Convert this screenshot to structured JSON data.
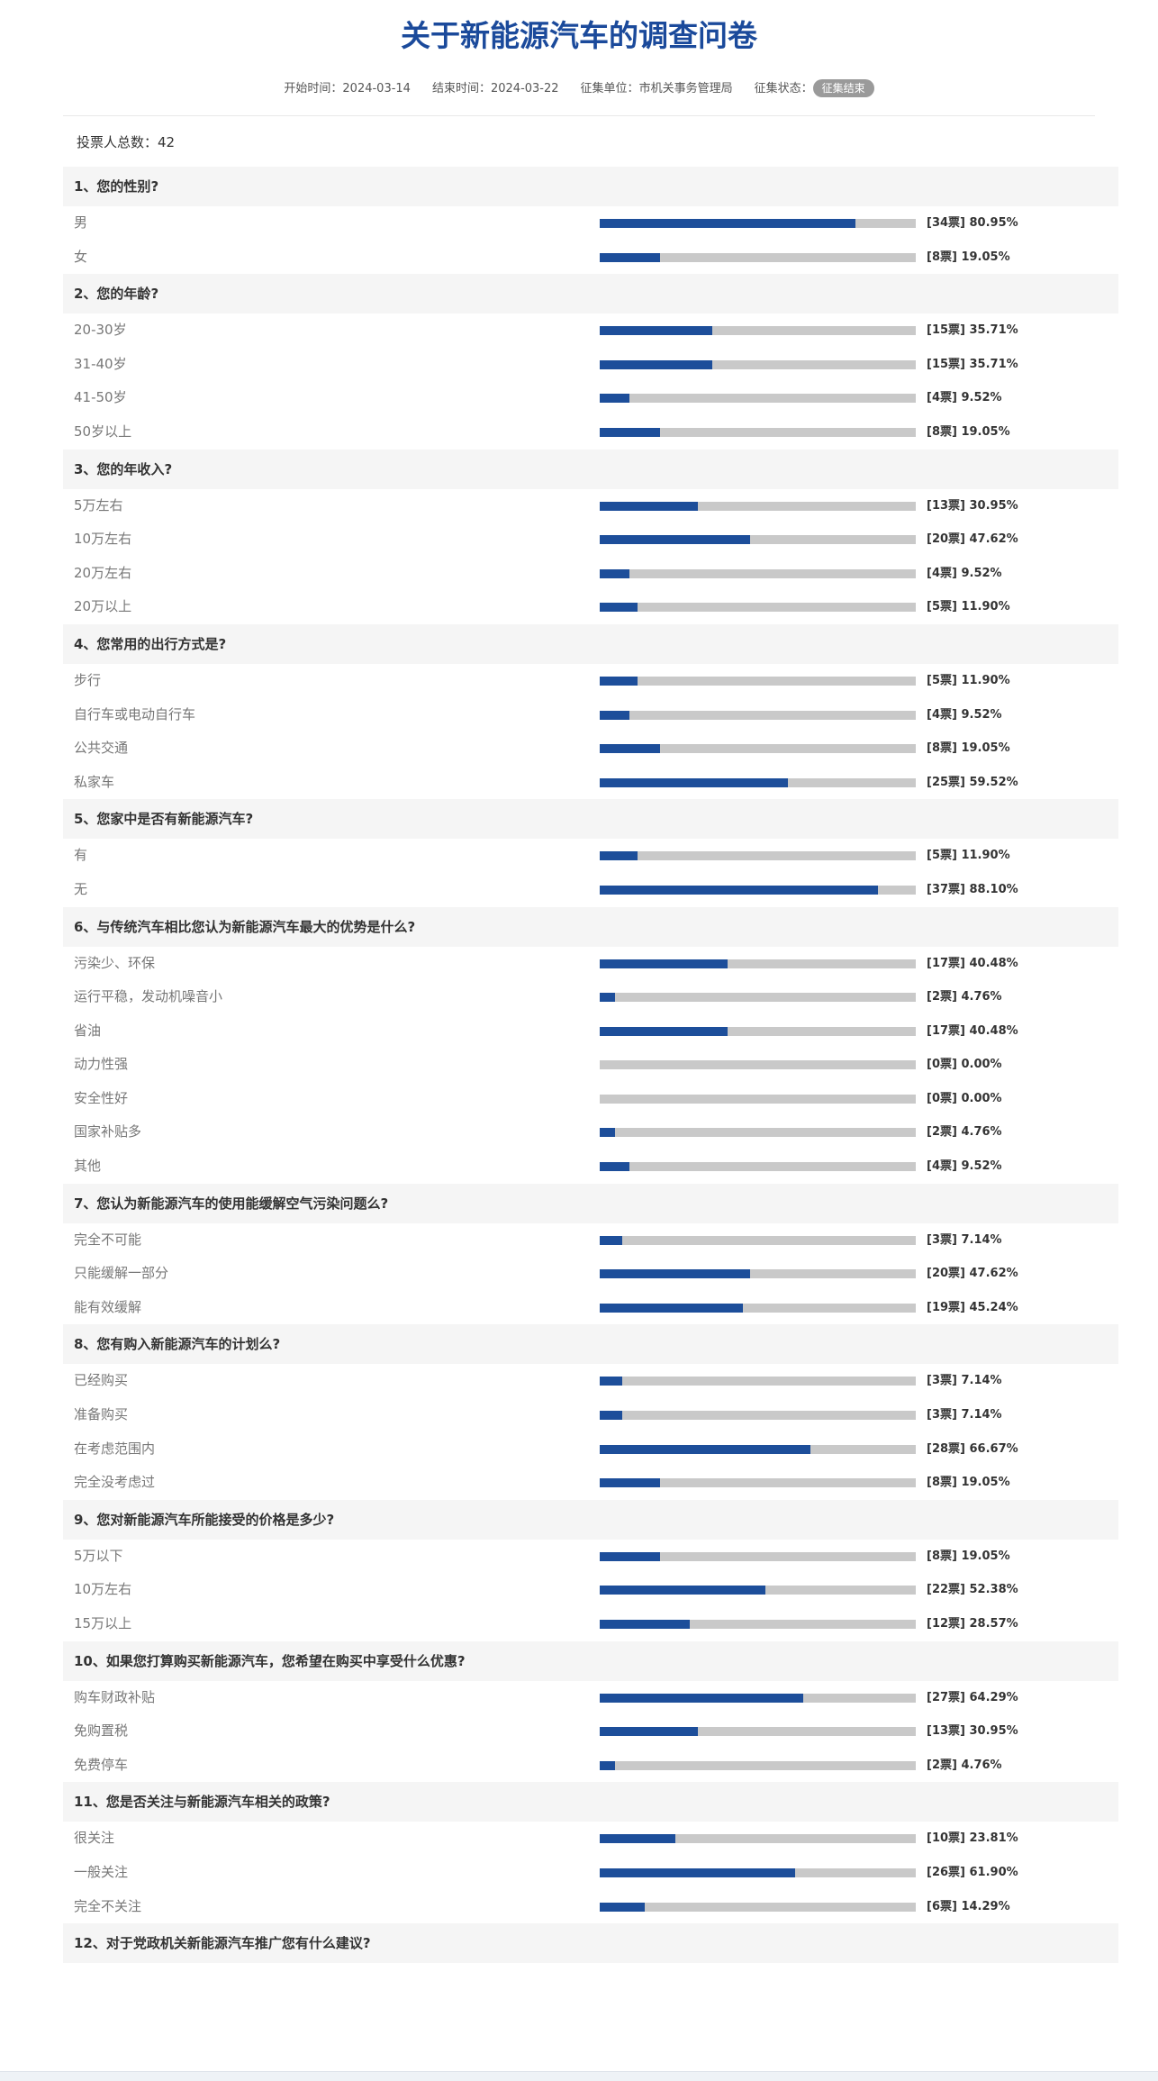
{
  "header": {
    "title": "关于新能源汽车的调查问卷",
    "meta": [
      {
        "label": "开始时间：",
        "value": "2024-03-14"
      },
      {
        "label": "结束时间：",
        "value": "2024-03-22"
      },
      {
        "label": "征集单位：",
        "value": "市机关事务管理局"
      }
    ],
    "status": {
      "label": "征集状态：",
      "value": "征集结束"
    }
  },
  "total": {
    "label": "投票人总数：",
    "value": 42
  },
  "questions": [
    {
      "title": "1、您的性别?",
      "options": [
        {
          "label": "男",
          "value": 80.95,
          "value_label": "[34票] 80.95%"
        },
        {
          "label": "女",
          "value": 19.05,
          "value_label": "[8票] 19.05%"
        }
      ]
    },
    {
      "title": "2、您的年龄?",
      "options": [
        {
          "label": "20-30岁",
          "value": 35.71,
          "value_label": "[15票] 35.71%"
        },
        {
          "label": "31-40岁",
          "value": 35.71,
          "value_label": "[15票] 35.71%"
        },
        {
          "label": "41-50岁",
          "value": 9.52,
          "value_label": "[4票] 9.52%"
        },
        {
          "label": "50岁以上",
          "value": 19.05,
          "value_label": "[8票] 19.05%"
        }
      ]
    },
    {
      "title": "3、您的年收入?",
      "options": [
        {
          "label": "5万左右",
          "value": 30.95,
          "value_label": "[13票] 30.95%"
        },
        {
          "label": "10万左右",
          "value": 47.62,
          "value_label": "[20票] 47.62%"
        },
        {
          "label": "20万左右",
          "value": 9.52,
          "value_label": "[4票] 9.52%"
        },
        {
          "label": "20万以上",
          "value": 11.9,
          "value_label": "[5票] 11.90%"
        }
      ]
    },
    {
      "title": "4、您常用的出行方式是?",
      "options": [
        {
          "label": "步行",
          "value": 11.9,
          "value_label": "[5票] 11.90%"
        },
        {
          "label": "自行车或电动自行车",
          "value": 9.52,
          "value_label": "[4票] 9.52%"
        },
        {
          "label": "公共交通",
          "value": 19.05,
          "value_label": "[8票] 19.05%"
        },
        {
          "label": "私家车",
          "value": 59.52,
          "value_label": "[25票] 59.52%"
        }
      ]
    },
    {
      "title": "5、您家中是否有新能源汽车?",
      "options": [
        {
          "label": "有",
          "value": 11.9,
          "value_label": "[5票] 11.90%"
        },
        {
          "label": "无",
          "value": 88.1,
          "value_label": "[37票] 88.10%"
        }
      ]
    },
    {
      "title": "6、与传统汽车相比您认为新能源汽车最大的优势是什么?",
      "options": [
        {
          "label": "污染少、环保",
          "value": 40.48,
          "value_label": "[17票] 40.48%"
        },
        {
          "label": "运行平稳，发动机噪音小",
          "value": 4.76,
          "value_label": "[2票] 4.76%"
        },
        {
          "label": "省油",
          "value": 40.48,
          "value_label": "[17票] 40.48%"
        },
        {
          "label": "动力性强",
          "value": 0,
          "value_label": "[0票] 0.00%"
        },
        {
          "label": "安全性好",
          "value": 0,
          "value_label": "[0票] 0.00%"
        },
        {
          "label": "国家补贴多",
          "value": 4.76,
          "value_label": "[2票] 4.76%"
        },
        {
          "label": "其他",
          "value": 9.52,
          "value_label": "[4票] 9.52%"
        }
      ]
    },
    {
      "title": "7、您认为新能源汽车的使用能缓解空气污染问题么?",
      "options": [
        {
          "label": "完全不可能",
          "value": 7.14,
          "value_label": "[3票] 7.14%"
        },
        {
          "label": "只能缓解一部分",
          "value": 47.62,
          "value_label": "[20票] 47.62%"
        },
        {
          "label": "能有效缓解",
          "value": 45.24,
          "value_label": "[19票] 45.24%"
        }
      ]
    },
    {
      "title": "8、您有购入新能源汽车的计划么?",
      "options": [
        {
          "label": "已经购买",
          "value": 7.14,
          "value_label": "[3票] 7.14%"
        },
        {
          "label": "准备购买",
          "value": 7.14,
          "value_label": "[3票] 7.14%"
        },
        {
          "label": "在考虑范围内",
          "value": 66.67,
          "value_label": "[28票] 66.67%"
        },
        {
          "label": "完全没考虑过",
          "value": 19.05,
          "value_label": "[8票] 19.05%"
        }
      ]
    },
    {
      "title": "9、您对新能源汽车所能接受的价格是多少?",
      "options": [
        {
          "label": "5万以下",
          "value": 19.05,
          "value_label": "[8票] 19.05%"
        },
        {
          "label": "10万左右",
          "value": 52.38,
          "value_label": "[22票] 52.38%"
        },
        {
          "label": "15万以上",
          "value": 28.57,
          "value_label": "[12票] 28.57%"
        }
      ]
    },
    {
      "title": "10、如果您打算购买新能源汽车，您希望在购买中享受什么优惠?",
      "options": [
        {
          "label": "购车财政补贴",
          "value": 64.29,
          "value_label": "[27票] 64.29%"
        },
        {
          "label": "免购置税",
          "value": 30.95,
          "value_label": "[13票] 30.95%"
        },
        {
          "label": "免费停车",
          "value": 4.76,
          "value_label": "[2票] 4.76%"
        }
      ]
    },
    {
      "title": "11、您是否关注与新能源汽车相关的政策?",
      "options": [
        {
          "label": "很关注",
          "value": 23.81,
          "value_label": "[10票] 23.81%"
        },
        {
          "label": "一般关注",
          "value": 61.9,
          "value_label": "[26票] 61.90%"
        },
        {
          "label": "完全不关注",
          "value": 14.29,
          "value_label": "[6票] 14.29%"
        }
      ]
    },
    {
      "title": "12、对于党政机关新能源汽车推广您有什么建议?"
    }
  ]
}
